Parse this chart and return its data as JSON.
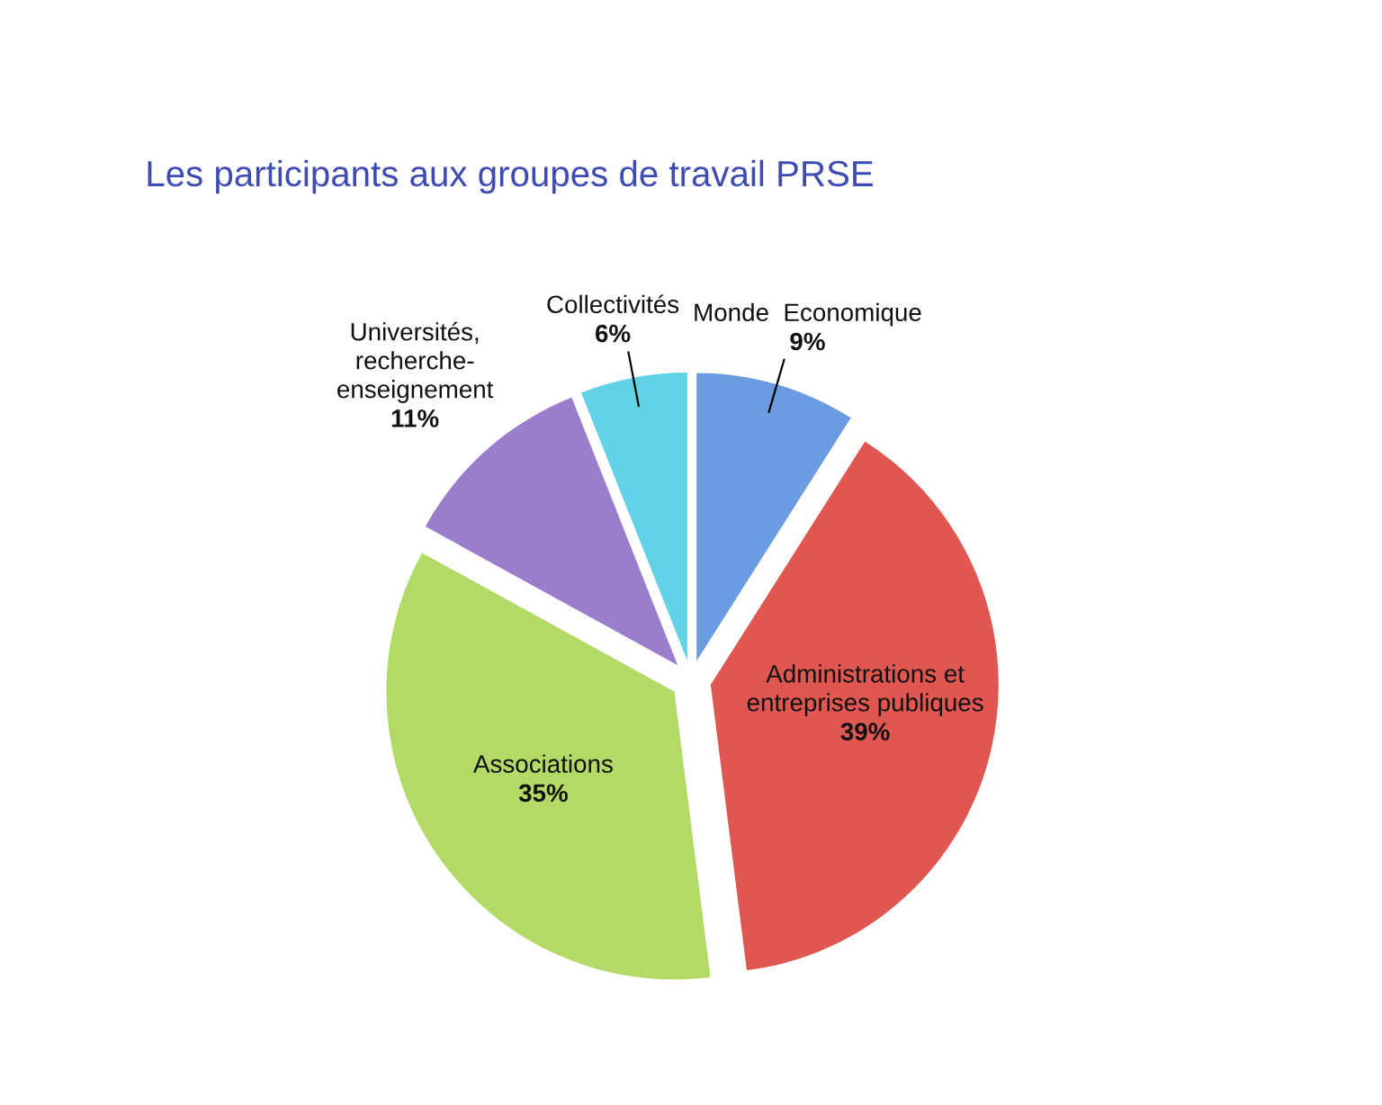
{
  "chart_data": {
    "type": "pie",
    "title": "Les participants aux groupes de travail PRSE",
    "categories": [
      "Monde  Economique",
      "Administrations et\nentreprises publiques",
      "Associations",
      "Universités,\nrecherche-\nenseignement",
      "Collectivités"
    ],
    "values": [
      9,
      39,
      35,
      11,
      6
    ],
    "value_labels": [
      "9%",
      "39%",
      "35%",
      "11%",
      "6%"
    ],
    "colors": [
      "#6b9be0",
      "#e05650",
      "#b3da66",
      "#9a7ecb",
      "#62d2e6"
    ]
  }
}
